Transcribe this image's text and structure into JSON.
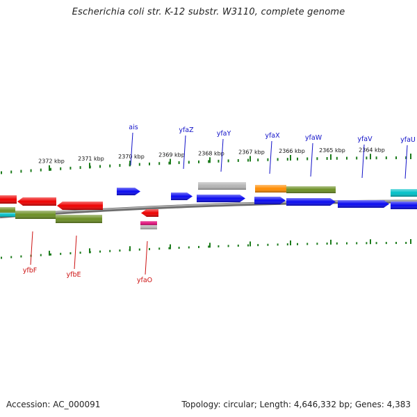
{
  "title": "Escherichia coli str. K-12 substr. W3110, complete genome",
  "footer": {
    "accession": "Accession: AC_000091",
    "summary": "Topology: circular; Length: 4,646,332 bp; Genes: 4,383"
  },
  "colors": {
    "backbone": "#8c8c8c",
    "ticks": "#1a7a1a",
    "top_label": "#1010c8",
    "bottom_label": "#cc1010",
    "gene_red": "#ee0000",
    "gene_blue": "#0a0af0",
    "gene_gray": "#b4b4b4",
    "gene_olive": "#6b8e23",
    "gene_orange": "#ff8c00",
    "gene_cyan": "#00c0c8",
    "gene_magenta": "#e0107a"
  },
  "scale": {
    "unit": "kbp",
    "labels": [
      "2372 kbp",
      "2371 kbp",
      "2370 kbp",
      "2369 kbp",
      "2368 kbp",
      "2367 kbp",
      "2366 kbp",
      "2365 kbp",
      "2364 kbp"
    ]
  },
  "labels_top": [
    "ais",
    "yfaZ",
    "yfaY",
    "yfaX",
    "yfaW",
    "yfaV",
    "yfaU"
  ],
  "labels_bottom": [
    "yfbF",
    "yfbE",
    "yfaO"
  ]
}
